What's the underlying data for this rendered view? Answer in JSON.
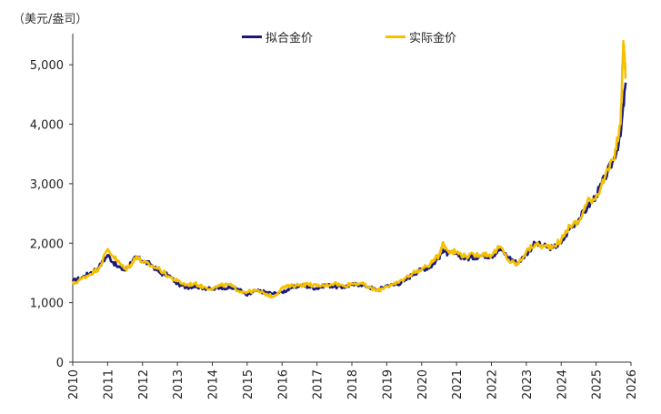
{
  "chart_data": {
    "type": "line",
    "unit": "（美元/盎司）",
    "ylim": [
      0,
      5400
    ],
    "yticks": [
      0,
      1000,
      2000,
      3000,
      4000,
      5000
    ],
    "ytick_labels": [
      "0",
      "1,000",
      "2,000",
      "3,000",
      "4,000",
      "5,000"
    ],
    "xlim": [
      2010,
      2026
    ],
    "xticks": [
      2010,
      2011,
      2012,
      2013,
      2014,
      2015,
      2016,
      2017,
      2018,
      2019,
      2020,
      2021,
      2022,
      2023,
      2024,
      2025,
      2026
    ],
    "xtick_labels": [
      "2010",
      "2011",
      "2012",
      "2013",
      "2014",
      "2015",
      "2016",
      "2017",
      "2018",
      "2019",
      "2020",
      "2021",
      "2022",
      "2023",
      "2024",
      "2025",
      "2026"
    ],
    "legend_position": "top-center",
    "series": [
      {
        "name": "拟合金价",
        "color": "#1a1a7a",
        "x": [
          2010.0,
          2010.25,
          2010.5,
          2010.75,
          2011.0,
          2011.25,
          2011.5,
          2011.67,
          2011.83,
          2012.0,
          2012.25,
          2012.5,
          2012.75,
          2013.0,
          2013.25,
          2013.5,
          2013.75,
          2014.0,
          2014.25,
          2014.5,
          2014.75,
          2015.0,
          2015.25,
          2015.5,
          2015.75,
          2016.0,
          2016.25,
          2016.5,
          2016.75,
          2017.0,
          2017.25,
          2017.5,
          2017.75,
          2018.0,
          2018.25,
          2018.5,
          2018.75,
          2019.0,
          2019.25,
          2019.5,
          2019.75,
          2020.0,
          2020.25,
          2020.5,
          2020.6,
          2020.75,
          2021.0,
          2021.25,
          2021.5,
          2021.75,
          2022.0,
          2022.25,
          2022.5,
          2022.75,
          2023.0,
          2023.25,
          2023.5,
          2023.75,
          2024.0,
          2024.25,
          2024.5,
          2024.75,
          2025.0,
          2025.25,
          2025.5,
          2025.7,
          2025.85
        ],
        "values": [
          1360,
          1420,
          1500,
          1600,
          1800,
          1620,
          1540,
          1680,
          1760,
          1700,
          1640,
          1500,
          1460,
          1320,
          1260,
          1280,
          1250,
          1220,
          1260,
          1250,
          1230,
          1120,
          1200,
          1180,
          1150,
          1180,
          1240,
          1290,
          1270,
          1240,
          1300,
          1270,
          1260,
          1300,
          1310,
          1260,
          1210,
          1290,
          1300,
          1360,
          1480,
          1560,
          1600,
          1760,
          1900,
          1820,
          1820,
          1740,
          1760,
          1800,
          1780,
          1900,
          1760,
          1660,
          1820,
          2000,
          1950,
          1920,
          2000,
          2250,
          2400,
          2600,
          2800,
          3100,
          3400,
          3800,
          4700
        ]
      },
      {
        "name": "实际金价",
        "color": "#f5c000",
        "x": [
          2010.0,
          2010.25,
          2010.5,
          2010.75,
          2011.0,
          2011.25,
          2011.5,
          2011.67,
          2011.83,
          2012.0,
          2012.25,
          2012.5,
          2012.75,
          2013.0,
          2013.25,
          2013.5,
          2013.75,
          2014.0,
          2014.25,
          2014.5,
          2014.75,
          2015.0,
          2015.25,
          2015.5,
          2015.75,
          2016.0,
          2016.25,
          2016.5,
          2016.75,
          2017.0,
          2017.25,
          2017.5,
          2017.75,
          2018.0,
          2018.25,
          2018.5,
          2018.75,
          2019.0,
          2019.25,
          2019.5,
          2019.75,
          2020.0,
          2020.25,
          2020.5,
          2020.6,
          2020.75,
          2021.0,
          2021.25,
          2021.5,
          2021.75,
          2022.0,
          2022.25,
          2022.5,
          2022.75,
          2023.0,
          2023.25,
          2023.5,
          2023.75,
          2024.0,
          2024.25,
          2024.5,
          2024.75,
          2025.0,
          2025.25,
          2025.5,
          2025.7,
          2025.78,
          2025.85
        ],
        "values": [
          1310,
          1400,
          1480,
          1580,
          1900,
          1720,
          1560,
          1640,
          1780,
          1680,
          1620,
          1560,
          1440,
          1360,
          1300,
          1320,
          1260,
          1240,
          1290,
          1300,
          1200,
          1180,
          1200,
          1150,
          1100,
          1250,
          1280,
          1300,
          1310,
          1280,
          1290,
          1330,
          1280,
          1320,
          1330,
          1250,
          1200,
          1280,
          1310,
          1400,
          1500,
          1560,
          1650,
          1800,
          2000,
          1880,
          1850,
          1780,
          1800,
          1820,
          1800,
          1940,
          1700,
          1640,
          1860,
          1980,
          1940,
          1950,
          2050,
          2300,
          2350,
          2700,
          2780,
          3100,
          3400,
          4000,
          5400,
          4800
        ]
      }
    ]
  }
}
